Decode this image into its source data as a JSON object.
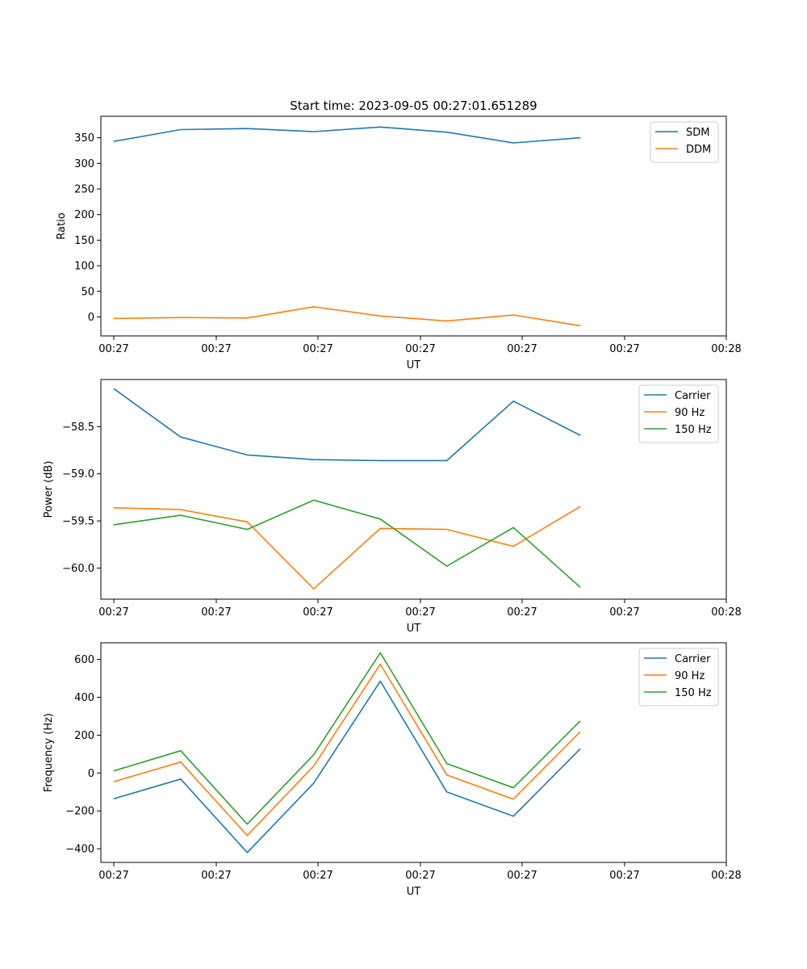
{
  "figure": {
    "title": "Start time: 2023-09-05 00:27:01.651289"
  },
  "colors": {
    "blue": "#1f77b4",
    "orange": "#ff7f0e",
    "green": "#2ca02c"
  },
  "chart_data": [
    {
      "type": "line",
      "title": "Start time: 2023-09-05 00:27:01.651289",
      "xlabel": "UT",
      "ylabel": "Ratio",
      "x_tick_labels": [
        "00:27",
        "00:27",
        "00:27",
        "00:27",
        "00:27",
        "00:27",
        "00:27",
        "00:28"
      ],
      "y_ticks": [
        0,
        50,
        100,
        150,
        200,
        250,
        300,
        350
      ],
      "y_tick_labels": [
        "0",
        "50",
        "100",
        "150",
        "200",
        "250",
        "300",
        "350"
      ],
      "ylim": [
        -37,
        392
      ],
      "x_index_range": [
        -0.2,
        9.2
      ],
      "x_index": [
        0,
        1,
        2,
        3,
        4,
        5,
        6,
        7
      ],
      "legend": "top-right",
      "series": [
        {
          "name": "SDM",
          "color": "#1f77b4",
          "values": [
            343,
            366,
            368,
            362,
            371,
            361,
            340,
            350
          ]
        },
        {
          "name": "DDM",
          "color": "#ff7f0e",
          "values": [
            -3,
            -1,
            -2,
            20,
            2,
            -8,
            4,
            -17
          ]
        }
      ]
    },
    {
      "type": "line",
      "xlabel": "UT",
      "ylabel": "Power (dB)",
      "x_tick_labels": [
        "00:27",
        "00:27",
        "00:27",
        "00:27",
        "00:27",
        "00:27",
        "00:27",
        "00:28"
      ],
      "y_ticks": [
        -60.0,
        -59.5,
        -59.0,
        -58.5
      ],
      "y_tick_labels": [
        "−60.0",
        "−59.5",
        "−59.0",
        "−58.5"
      ],
      "ylim": [
        -60.33,
        -58.0
      ],
      "x_index_range": [
        -0.2,
        9.2
      ],
      "x_index": [
        0,
        1,
        2,
        3,
        4,
        5,
        6,
        7
      ],
      "legend": "top-right",
      "series": [
        {
          "name": "Carrier",
          "color": "#1f77b4",
          "values": [
            -58.1,
            -58.61,
            -58.8,
            -58.85,
            -58.86,
            -58.86,
            -58.23,
            -58.59
          ]
        },
        {
          "name": "90 Hz",
          "color": "#ff7f0e",
          "values": [
            -59.36,
            -59.38,
            -59.51,
            -60.22,
            -59.58,
            -59.59,
            -59.77,
            -59.35
          ]
        },
        {
          "name": "150 Hz",
          "color": "#2ca02c",
          "values": [
            -59.54,
            -59.44,
            -59.59,
            -59.28,
            -59.48,
            -59.98,
            -59.57,
            -60.2
          ]
        }
      ]
    },
    {
      "type": "line",
      "xlabel": "UT",
      "ylabel": "Frequency (Hz)",
      "x_tick_labels": [
        "00:27",
        "00:27",
        "00:27",
        "00:27",
        "00:27",
        "00:27",
        "00:27",
        "00:28"
      ],
      "y_ticks": [
        -400,
        -200,
        0,
        200,
        400,
        600
      ],
      "y_tick_labels": [
        "−400",
        "−200",
        "0",
        "200",
        "400",
        "600"
      ],
      "ylim": [
        -472,
        688
      ],
      "x_index_range": [
        -0.2,
        9.2
      ],
      "x_index": [
        0,
        1,
        2,
        3,
        4,
        5,
        6,
        7
      ],
      "legend": "top-right",
      "series": [
        {
          "name": "Carrier",
          "color": "#1f77b4",
          "values": [
            -135,
            -32,
            -420,
            -53,
            485,
            -100,
            -228,
            126
          ]
        },
        {
          "name": "90 Hz",
          "color": "#ff7f0e",
          "values": [
            -45,
            58,
            -330,
            37,
            575,
            -10,
            -138,
            216
          ]
        },
        {
          "name": "150 Hz",
          "color": "#2ca02c",
          "values": [
            12,
            118,
            -270,
            97,
            635,
            50,
            -78,
            273
          ]
        }
      ]
    }
  ]
}
